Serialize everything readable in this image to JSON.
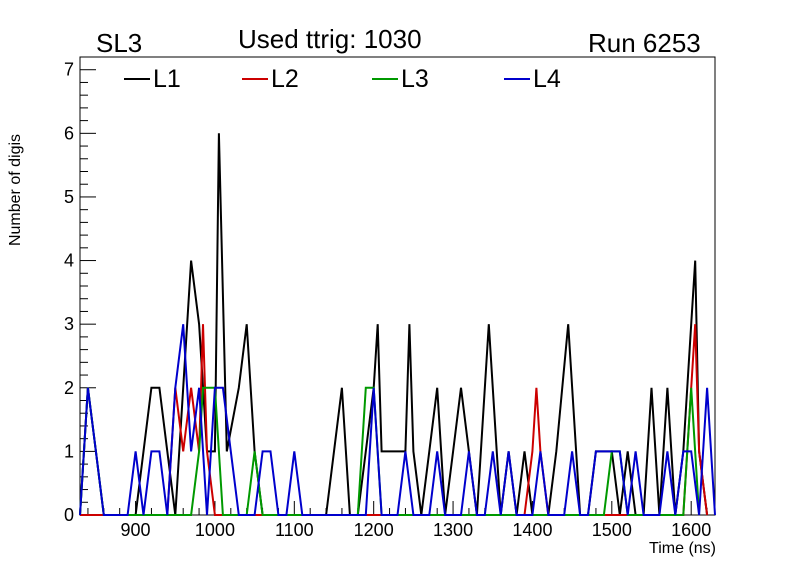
{
  "header": {
    "left": "SL3",
    "center": "Used ttrig: 1030",
    "right": "Run 6253"
  },
  "chart_data": {
    "type": "line",
    "xlabel": "Time (ns)",
    "ylabel": "Number of digis",
    "xlim": [
      830,
      1630
    ],
    "ylim": [
      0,
      7.2
    ],
    "x_ticks": [
      900,
      1000,
      1100,
      1200,
      1300,
      1400,
      1500,
      1600
    ],
    "y_ticks": [
      0,
      1,
      2,
      3,
      4,
      5,
      6,
      7
    ],
    "x_tick_labels": [
      "900",
      "1000",
      "1100",
      "1200",
      "1300",
      "1400",
      "1500",
      "1600"
    ],
    "y_tick_labels": [
      "0",
      "1",
      "2",
      "3",
      "4",
      "5",
      "6",
      "7"
    ],
    "legend_position": "top",
    "series": [
      {
        "name": "L1",
        "color": "#000000",
        "points": [
          [
            830,
            0
          ],
          [
            840,
            2
          ],
          [
            850,
            1
          ],
          [
            860,
            0
          ],
          [
            870,
            0
          ],
          [
            880,
            0
          ],
          [
            890,
            0
          ],
          [
            900,
            0
          ],
          [
            910,
            1
          ],
          [
            920,
            2
          ],
          [
            930,
            2
          ],
          [
            940,
            1
          ],
          [
            950,
            0
          ],
          [
            960,
            2
          ],
          [
            970,
            4
          ],
          [
            980,
            3
          ],
          [
            990,
            1
          ],
          [
            1000,
            1
          ],
          [
            1005,
            6
          ],
          [
            1015,
            1
          ],
          [
            1030,
            2
          ],
          [
            1040,
            3
          ],
          [
            1050,
            1
          ],
          [
            1060,
            0
          ],
          [
            1070,
            0
          ],
          [
            1080,
            0
          ],
          [
            1090,
            0
          ],
          [
            1100,
            0
          ],
          [
            1110,
            0
          ],
          [
            1120,
            0
          ],
          [
            1130,
            0
          ],
          [
            1140,
            0
          ],
          [
            1150,
            1
          ],
          [
            1160,
            2
          ],
          [
            1170,
            0
          ],
          [
            1180,
            0
          ],
          [
            1190,
            1
          ],
          [
            1200,
            2
          ],
          [
            1205,
            3
          ],
          [
            1210,
            1
          ],
          [
            1220,
            1
          ],
          [
            1230,
            1
          ],
          [
            1240,
            1
          ],
          [
            1245,
            3
          ],
          [
            1250,
            1
          ],
          [
            1260,
            0
          ],
          [
            1270,
            1
          ],
          [
            1280,
            2
          ],
          [
            1290,
            0
          ],
          [
            1300,
            1
          ],
          [
            1310,
            2
          ],
          [
            1320,
            1
          ],
          [
            1330,
            0
          ],
          [
            1345,
            3
          ],
          [
            1360,
            0
          ],
          [
            1370,
            1
          ],
          [
            1380,
            0
          ],
          [
            1390,
            1
          ],
          [
            1400,
            0
          ],
          [
            1410,
            0
          ],
          [
            1420,
            0
          ],
          [
            1430,
            1
          ],
          [
            1445,
            3
          ],
          [
            1460,
            0
          ],
          [
            1470,
            0
          ],
          [
            1480,
            1
          ],
          [
            1490,
            1
          ],
          [
            1500,
            1
          ],
          [
            1510,
            0
          ],
          [
            1520,
            1
          ],
          [
            1530,
            0
          ],
          [
            1540,
            0
          ],
          [
            1550,
            2
          ],
          [
            1560,
            0
          ],
          [
            1570,
            2
          ],
          [
            1580,
            0
          ],
          [
            1590,
            1
          ],
          [
            1600,
            3
          ],
          [
            1605,
            4
          ],
          [
            1610,
            1
          ],
          [
            1620,
            0
          ]
        ]
      },
      {
        "name": "L2",
        "color": "#cc0000",
        "points": [
          [
            830,
            0
          ],
          [
            940,
            0
          ],
          [
            950,
            2
          ],
          [
            960,
            1
          ],
          [
            970,
            2
          ],
          [
            980,
            1
          ],
          [
            985,
            3
          ],
          [
            990,
            1
          ],
          [
            1000,
            0
          ],
          [
            1390,
            0
          ],
          [
            1400,
            1
          ],
          [
            1405,
            2
          ],
          [
            1410,
            1
          ],
          [
            1420,
            0
          ],
          [
            1590,
            0
          ],
          [
            1600,
            2
          ],
          [
            1605,
            3
          ],
          [
            1610,
            1
          ],
          [
            1620,
            0
          ]
        ]
      },
      {
        "name": "L3",
        "color": "#009900",
        "points": [
          [
            830,
            0
          ],
          [
            840,
            2
          ],
          [
            850,
            1
          ],
          [
            860,
            0
          ],
          [
            970,
            0
          ],
          [
            980,
            1
          ],
          [
            985,
            2
          ],
          [
            990,
            2
          ],
          [
            1000,
            2
          ],
          [
            1010,
            0
          ],
          [
            1040,
            0
          ],
          [
            1050,
            1
          ],
          [
            1060,
            0
          ],
          [
            1180,
            0
          ],
          [
            1190,
            2
          ],
          [
            1200,
            2
          ],
          [
            1210,
            0
          ],
          [
            1490,
            0
          ],
          [
            1500,
            1
          ],
          [
            1510,
            1
          ],
          [
            1520,
            0
          ],
          [
            1590,
            0
          ],
          [
            1600,
            2
          ],
          [
            1610,
            0
          ]
        ]
      },
      {
        "name": "L4",
        "color": "#0000cc",
        "points": [
          [
            830,
            0
          ],
          [
            840,
            2
          ],
          [
            850,
            1
          ],
          [
            860,
            0
          ],
          [
            870,
            0
          ],
          [
            880,
            0
          ],
          [
            890,
            0
          ],
          [
            900,
            1
          ],
          [
            910,
            0
          ],
          [
            920,
            1
          ],
          [
            930,
            1
          ],
          [
            940,
            0
          ],
          [
            950,
            2
          ],
          [
            960,
            3
          ],
          [
            970,
            1
          ],
          [
            980,
            2
          ],
          [
            990,
            0
          ],
          [
            1000,
            2
          ],
          [
            1010,
            2
          ],
          [
            1020,
            1
          ],
          [
            1030,
            0
          ],
          [
            1040,
            0
          ],
          [
            1050,
            0
          ],
          [
            1060,
            1
          ],
          [
            1070,
            1
          ],
          [
            1080,
            0
          ],
          [
            1090,
            0
          ],
          [
            1100,
            1
          ],
          [
            1110,
            0
          ],
          [
            1190,
            0
          ],
          [
            1200,
            2
          ],
          [
            1210,
            0
          ],
          [
            1220,
            0
          ],
          [
            1230,
            0
          ],
          [
            1240,
            1
          ],
          [
            1250,
            0
          ],
          [
            1260,
            0
          ],
          [
            1270,
            0
          ],
          [
            1280,
            1
          ],
          [
            1290,
            0
          ],
          [
            1300,
            0
          ],
          [
            1310,
            0
          ],
          [
            1320,
            1
          ],
          [
            1330,
            0
          ],
          [
            1340,
            0
          ],
          [
            1350,
            1
          ],
          [
            1360,
            0
          ],
          [
            1370,
            1
          ],
          [
            1380,
            0
          ],
          [
            1390,
            0
          ],
          [
            1400,
            0
          ],
          [
            1410,
            1
          ],
          [
            1420,
            0
          ],
          [
            1430,
            0
          ],
          [
            1440,
            0
          ],
          [
            1450,
            1
          ],
          [
            1460,
            0
          ],
          [
            1470,
            0
          ],
          [
            1480,
            1
          ],
          [
            1490,
            1
          ],
          [
            1500,
            1
          ],
          [
            1510,
            1
          ],
          [
            1520,
            0
          ],
          [
            1530,
            1
          ],
          [
            1540,
            0
          ],
          [
            1550,
            0
          ],
          [
            1560,
            0
          ],
          [
            1570,
            1
          ],
          [
            1580,
            0
          ],
          [
            1590,
            1
          ],
          [
            1600,
            1
          ],
          [
            1610,
            0
          ],
          [
            1620,
            2
          ],
          [
            1630,
            0
          ]
        ]
      }
    ]
  }
}
